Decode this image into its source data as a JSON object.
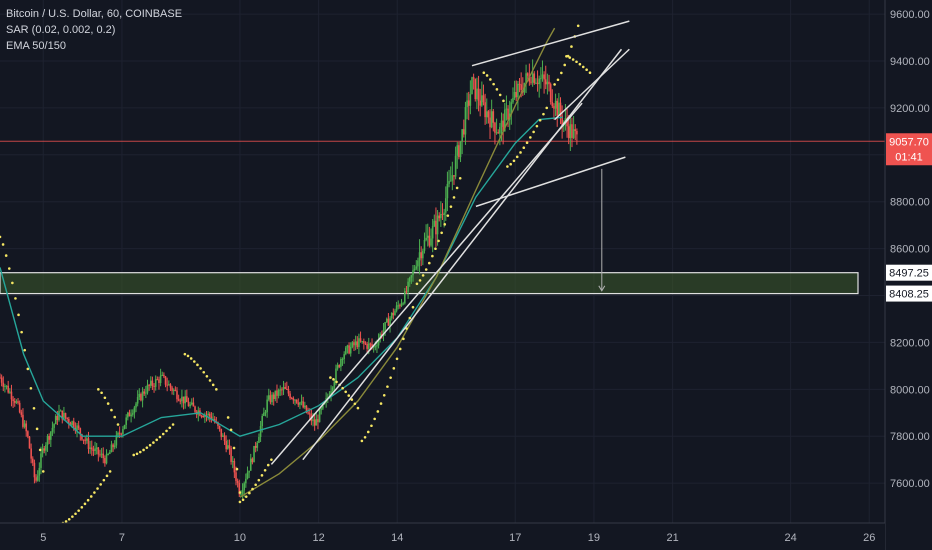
{
  "legend": {
    "symbol": "Bitcoin / U.S. Dollar, 60, COINBASE",
    "sar": "SAR (0.02, 0.002, 0.2)",
    "ema": "EMA 50/150"
  },
  "price_tag": {
    "value": "9057.70",
    "countdown": "01:41",
    "color": "#ef5350"
  },
  "level_tags": [
    "8497.25",
    "8408.25"
  ],
  "colors": {
    "background": "#131722",
    "up": "#4caf50",
    "down": "#ef5350",
    "ema_fast": "#26a69a",
    "ema_slow": "#8a8a3a",
    "sar": "#f5e663",
    "zone": "#3d5a2a",
    "line": "#e0e0e0"
  },
  "chart_data": {
    "type": "candlestick",
    "ylim": [
      7430,
      9660
    ],
    "xlim": [
      3.9,
      26.4
    ],
    "y_ticks": [
      7600,
      7800,
      8000,
      8200,
      8400,
      8600,
      8800,
      9000,
      9200,
      9400,
      9600
    ],
    "y_tick_labels": [
      "7600.00",
      "7800.00",
      "8000.00",
      "8200.00",
      "",
      "8600.00",
      "8800.00",
      "",
      "9200.00",
      "9400.00",
      "9600.00"
    ],
    "x_ticks": [
      {
        "x": 5,
        "label": "5"
      },
      {
        "x": 7,
        "label": "7"
      },
      {
        "x": 10,
        "label": "10"
      },
      {
        "x": 12,
        "label": "12"
      },
      {
        "x": 14,
        "label": "14"
      },
      {
        "x": 17,
        "label": "17"
      },
      {
        "x": 19,
        "label": "19"
      },
      {
        "x": 21,
        "label": "21"
      },
      {
        "x": 24,
        "label": "24"
      },
      {
        "x": 26,
        "label": "26"
      }
    ],
    "last_price": 9057.7,
    "zone": {
      "low": 8408.25,
      "high": 8497.25
    },
    "close_path": [
      [
        3.9,
        8050
      ],
      [
        4.3,
        7950
      ],
      [
        4.6,
        7800
      ],
      [
        4.8,
        7600
      ],
      [
        5.0,
        7750
      ],
      [
        5.4,
        7900
      ],
      [
        5.8,
        7850
      ],
      [
        6.2,
        7750
      ],
      [
        6.6,
        7700
      ],
      [
        6.9,
        7800
      ],
      [
        7.2,
        7900
      ],
      [
        7.6,
        8000
      ],
      [
        8.0,
        8050
      ],
      [
        8.4,
        7980
      ],
      [
        8.8,
        7920
      ],
      [
        9.3,
        7880
      ],
      [
        9.7,
        7750
      ],
      [
        10.0,
        7560
      ],
      [
        10.3,
        7700
      ],
      [
        10.7,
        7950
      ],
      [
        11.1,
        8000
      ],
      [
        11.5,
        7950
      ],
      [
        11.9,
        7850
      ],
      [
        12.2,
        7950
      ],
      [
        12.6,
        8150
      ],
      [
        13.0,
        8200
      ],
      [
        13.4,
        8180
      ],
      [
        13.8,
        8300
      ],
      [
        14.2,
        8400
      ],
      [
        14.6,
        8600
      ],
      [
        15.0,
        8700
      ],
      [
        15.3,
        8850
      ],
      [
        15.6,
        9050
      ],
      [
        15.9,
        9300
      ],
      [
        16.2,
        9200
      ],
      [
        16.6,
        9100
      ],
      [
        17.0,
        9250
      ],
      [
        17.4,
        9350
      ],
      [
        17.8,
        9300
      ],
      [
        18.2,
        9150
      ],
      [
        18.6,
        9057.7
      ]
    ],
    "ema50": [
      [
        3.9,
        8520
      ],
      [
        4.5,
        8150
      ],
      [
        5.0,
        7950
      ],
      [
        6.0,
        7800
      ],
      [
        7.0,
        7800
      ],
      [
        8.0,
        7880
      ],
      [
        9.0,
        7900
      ],
      [
        10.0,
        7800
      ],
      [
        11.0,
        7850
      ],
      [
        12.0,
        7930
      ],
      [
        13.0,
        8050
      ],
      [
        14.0,
        8220
      ],
      [
        15.0,
        8480
      ],
      [
        16.0,
        8820
      ],
      [
        17.0,
        9050
      ],
      [
        17.6,
        9150
      ],
      [
        18.2,
        9160
      ]
    ],
    "ema150": [
      [
        10.0,
        7540
      ],
      [
        11.0,
        7640
      ],
      [
        12.0,
        7780
      ],
      [
        13.0,
        7950
      ],
      [
        14.0,
        8180
      ],
      [
        15.0,
        8480
      ],
      [
        16.0,
        8850
      ],
      [
        17.0,
        9210
      ],
      [
        17.8,
        9480
      ],
      [
        18.0,
        9540
      ]
    ],
    "sar_segments": [
      {
        "from": [
          3.9,
          8650
        ],
        "to": [
          5.0,
          7650
        ]
      },
      {
        "from": [
          5.5,
          7430
        ],
        "to": [
          6.7,
          7650
        ]
      },
      {
        "from": [
          6.4,
          8000
        ],
        "to": [
          6.9,
          7850
        ]
      },
      {
        "from": [
          7.3,
          7720
        ],
        "to": [
          8.3,
          7850
        ]
      },
      {
        "from": [
          8.6,
          8150
        ],
        "to": [
          9.4,
          8000
        ]
      },
      {
        "from": [
          9.7,
          7880
        ],
        "to": [
          10.0,
          7560
        ]
      },
      {
        "from": [
          10.0,
          7520
        ],
        "to": [
          10.8,
          7700
        ]
      },
      {
        "from": [
          12.3,
          8050
        ],
        "to": [
          13.0,
          7920
        ]
      },
      {
        "from": [
          13.1,
          7780
        ],
        "to": [
          14.4,
          8350
        ]
      },
      {
        "from": [
          14.5,
          8450
        ],
        "to": [
          15.6,
          8900
        ]
      },
      {
        "from": [
          16.2,
          9350
        ],
        "to": [
          16.7,
          9230
        ]
      },
      {
        "from": [
          16.8,
          8950
        ],
        "to": [
          17.8,
          9200
        ]
      },
      {
        "from": [
          18.0,
          9300
        ],
        "to": [
          18.6,
          9550
        ]
      },
      {
        "from": [
          18.3,
          9420
        ],
        "to": [
          18.9,
          9350
        ]
      }
    ],
    "drawings": {
      "uptrend_line": {
        "from": [
          10.8,
          7680
        ],
        "to": [
          18.7,
          9220
        ]
      },
      "uptrend_line_2": {
        "from": [
          11.6,
          7700
        ],
        "to": [
          19.7,
          9450
        ]
      },
      "channel_top": {
        "from": [
          15.9,
          9380
        ],
        "to": [
          19.9,
          9570
        ]
      },
      "channel_bottom": {
        "from": [
          16.0,
          8780
        ],
        "to": [
          19.8,
          8990
        ]
      },
      "channel_mid": {
        "from": [
          18.0,
          9150
        ],
        "to": [
          19.9,
          9450
        ]
      },
      "projection_arrow": {
        "from": [
          19.2,
          8940
        ],
        "to": [
          19.2,
          8420
        ]
      }
    }
  }
}
